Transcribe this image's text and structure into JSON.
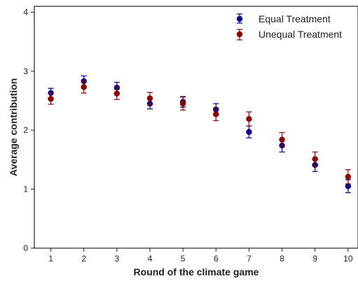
{
  "chart_data": {
    "type": "scatter",
    "xlabel": "Round of the climate game",
    "ylabel": "Average contribution",
    "x": [
      1,
      2,
      3,
      4,
      5,
      6,
      7,
      8,
      9,
      10
    ],
    "xlim": [
      0.5,
      10.3
    ],
    "ylim": [
      0,
      4.1
    ],
    "xticks": [
      1,
      2,
      3,
      4,
      5,
      6,
      7,
      8,
      9,
      10
    ],
    "yticks": [
      0,
      1,
      2,
      3,
      4
    ],
    "grid": false,
    "legend_position": "top-right",
    "series": [
      {
        "name": "Equal Treatment",
        "color": "#00008b",
        "values": [
          2.63,
          2.83,
          2.72,
          2.45,
          2.48,
          2.35,
          1.97,
          1.74,
          1.41,
          1.05
        ],
        "error": [
          0.08,
          0.09,
          0.09,
          0.09,
          0.09,
          0.1,
          0.1,
          0.11,
          0.11,
          0.11
        ]
      },
      {
        "name": "Unequal Treatment",
        "color": "#8b0000",
        "values": [
          2.53,
          2.73,
          2.62,
          2.54,
          2.45,
          2.27,
          2.19,
          1.84,
          1.51,
          1.21
        ],
        "error": [
          0.09,
          0.1,
          0.1,
          0.1,
          0.11,
          0.11,
          0.12,
          0.12,
          0.12,
          0.12
        ]
      }
    ]
  }
}
